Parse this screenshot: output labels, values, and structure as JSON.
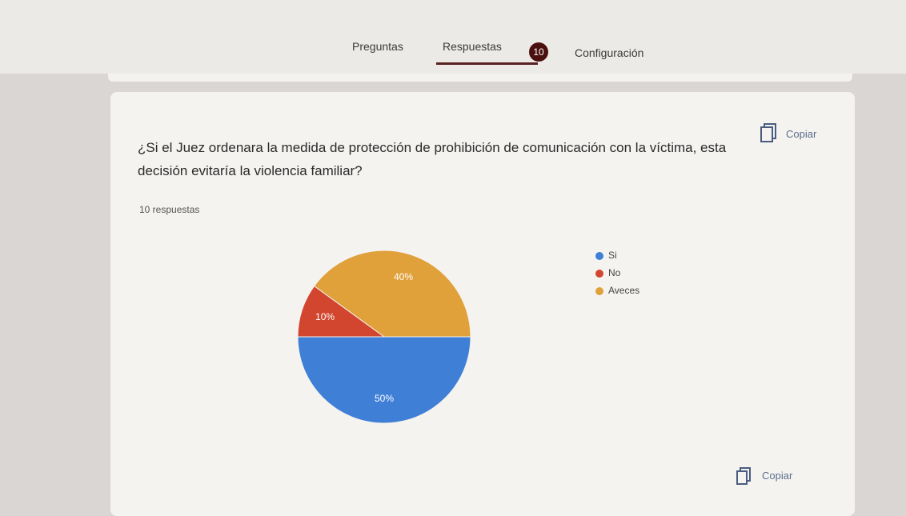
{
  "tabs": {
    "items": [
      "Preguntas",
      "Respuestas",
      "Configuración"
    ],
    "badge": 10
  },
  "card": {
    "question": "¿Si el Juez ordenara la medida de protección de prohibición de comunicación con la víctima, esta decisión evitaría la violencia familiar?",
    "copy": "Copiar",
    "response_count": "10 respuestas",
    "footer_copy": "Copiar"
  },
  "chart_data": {
    "type": "pie",
    "categories": [
      "Si",
      "No",
      "Aveces"
    ],
    "values": [
      50,
      10,
      40
    ],
    "value_labels": [
      "50%",
      "10%",
      "40%"
    ],
    "colors": [
      "#3f7fd6",
      "#d2452e",
      "#e0a03a"
    ],
    "legend": "right"
  }
}
